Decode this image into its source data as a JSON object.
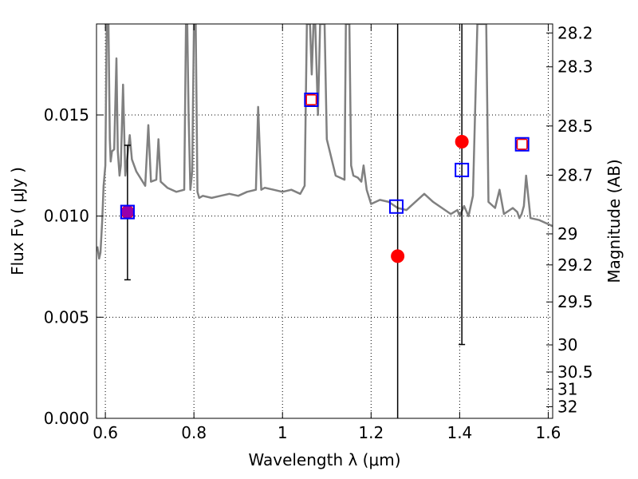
{
  "chart_data": {
    "type": "scatter",
    "xlabel": "Wavelength  λ (μm)",
    "ylabel": "Flux  Fν  ( μJy )",
    "y2label": "Magnitude (AB)",
    "xlim": [
      0.58,
      1.61
    ],
    "ylim": [
      0.0,
      0.0195
    ],
    "x_ticks": [
      0.6,
      0.8,
      1.0,
      1.2,
      1.4,
      1.6
    ],
    "x_tick_labels": [
      "0.6",
      "0.8",
      "1",
      "1.2",
      "1.4",
      "1.6"
    ],
    "y_ticks": [
      0.0,
      0.005,
      0.01,
      0.015
    ],
    "y_tick_labels": [
      "0.000",
      "0.005",
      "0.010",
      "0.015"
    ],
    "mag_ticks": [
      28.2,
      28.3,
      28.5,
      28.7,
      29,
      29.2,
      29.5,
      30,
      30.5,
      31,
      32
    ],
    "mag_tick_labels": [
      "28.2",
      "28.3",
      "28.5",
      "28.7",
      "29",
      "29.2",
      "29.5",
      "30",
      "30.5",
      "31",
      "32"
    ],
    "grid": true,
    "colors": {
      "spectrum": "#808080",
      "model_box": "#0000ff",
      "observed": "#ff0000",
      "errorbar": "#000000"
    },
    "spectrum": {
      "name": "",
      "x": [
        0.582,
        0.586,
        0.589,
        0.593,
        0.596,
        0.6,
        0.603,
        0.607,
        0.61,
        0.612,
        0.615,
        0.62,
        0.625,
        0.628,
        0.632,
        0.635,
        0.64,
        0.645,
        0.65,
        0.655,
        0.66,
        0.67,
        0.69,
        0.697,
        0.703,
        0.715,
        0.72,
        0.725,
        0.74,
        0.76,
        0.778,
        0.782,
        0.785,
        0.788,
        0.792,
        0.796,
        0.8,
        0.804,
        0.808,
        0.812,
        0.82,
        0.84,
        0.86,
        0.88,
        0.9,
        0.92,
        0.94,
        0.945,
        0.952,
        0.96,
        0.98,
        1.0,
        1.02,
        1.04,
        1.05,
        1.055,
        1.058,
        1.062,
        1.066,
        1.07,
        1.074,
        1.08,
        1.085,
        1.09,
        1.095,
        1.1,
        1.12,
        1.14,
        1.143,
        1.147,
        1.151,
        1.155,
        1.16,
        1.17,
        1.178,
        1.183,
        1.19,
        1.2,
        1.22,
        1.24,
        1.26,
        1.28,
        1.3,
        1.32,
        1.34,
        1.36,
        1.38,
        1.395,
        1.4,
        1.41,
        1.42,
        1.43,
        1.44,
        1.45,
        1.46,
        1.465,
        1.47,
        1.48,
        1.49,
        1.5,
        1.52,
        1.53,
        1.535,
        1.54,
        1.545,
        1.55,
        1.56,
        1.58,
        1.6,
        1.61
      ],
      "y": [
        0.0085,
        0.0079,
        0.0082,
        0.0098,
        0.0115,
        0.0125,
        0.0195,
        0.0195,
        0.0138,
        0.0127,
        0.0132,
        0.0133,
        0.0178,
        0.0132,
        0.012,
        0.0125,
        0.0165,
        0.012,
        0.013,
        0.014,
        0.0128,
        0.0122,
        0.0115,
        0.0145,
        0.0117,
        0.0118,
        0.0138,
        0.0117,
        0.0114,
        0.0112,
        0.0113,
        0.0195,
        0.0195,
        0.015,
        0.0113,
        0.0122,
        0.0195,
        0.0195,
        0.0112,
        0.0109,
        0.011,
        0.0109,
        0.011,
        0.0111,
        0.011,
        0.0112,
        0.0113,
        0.0154,
        0.0113,
        0.0114,
        0.0113,
        0.0112,
        0.0113,
        0.0111,
        0.0115,
        0.0195,
        0.0195,
        0.0195,
        0.017,
        0.0195,
        0.0195,
        0.015,
        0.0195,
        0.0195,
        0.0195,
        0.0138,
        0.012,
        0.0118,
        0.0195,
        0.0195,
        0.0195,
        0.0125,
        0.012,
        0.0119,
        0.0117,
        0.0125,
        0.0113,
        0.0106,
        0.0108,
        0.0107,
        0.0104,
        0.0103,
        0.0107,
        0.0111,
        0.0107,
        0.0104,
        0.0101,
        0.0103,
        0.01,
        0.0105,
        0.01,
        0.011,
        0.0195,
        0.0195,
        0.0195,
        0.0107,
        0.0106,
        0.0104,
        0.0113,
        0.0101,
        0.0104,
        0.0102,
        0.0099,
        0.0101,
        0.0105,
        0.012,
        0.0099,
        0.0098,
        0.0096,
        0.0095
      ]
    },
    "model_points": [
      {
        "x": 0.65,
        "y": 0.0102
      },
      {
        "x": 1.065,
        "y": 0.01575
      },
      {
        "x": 1.257,
        "y": 0.01047
      },
      {
        "x": 1.405,
        "y": 0.01228
      },
      {
        "x": 1.541,
        "y": 0.01355
      }
    ],
    "observed_points": [
      {
        "x": 0.65,
        "y": 0.0102,
        "yerr_low": 0.00685,
        "yerr_high": 0.0135
      },
      {
        "x": 1.065,
        "y": 0.01575,
        "yerr_low": null,
        "yerr_high": null
      },
      {
        "x": 1.26,
        "y": 0.00802,
        "yerr_low": 0.0,
        "yerr_high": 0.0195
      },
      {
        "x": 1.405,
        "y": 0.01368,
        "yerr_low": 0.00365,
        "yerr_high": 0.0195
      },
      {
        "x": 1.541,
        "y": 0.01355,
        "yerr_low": null,
        "yerr_high": null
      }
    ]
  }
}
